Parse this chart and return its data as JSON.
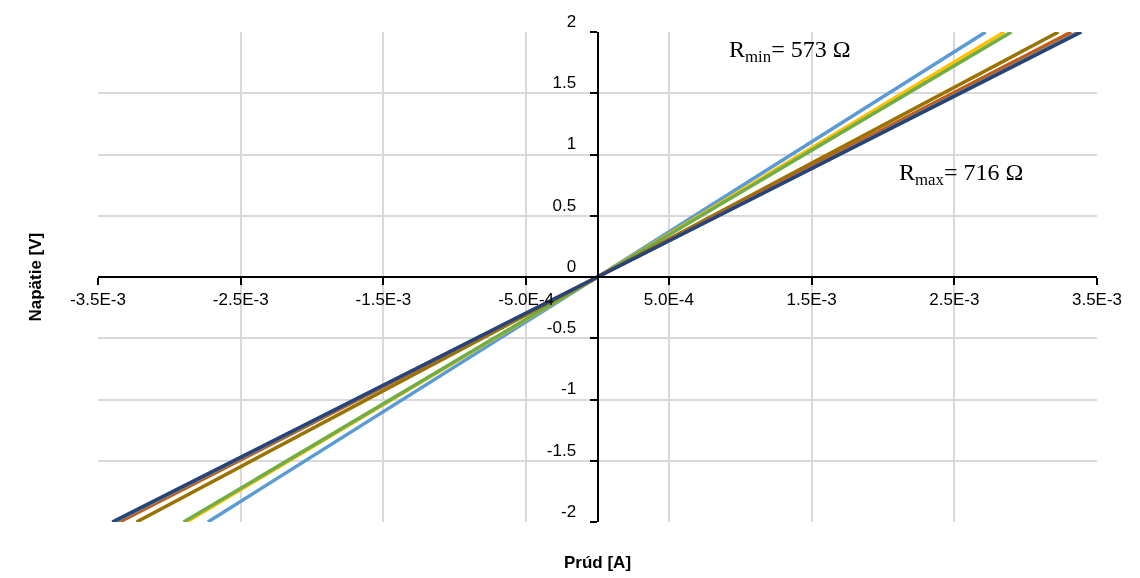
{
  "chart_data": {
    "type": "line",
    "xlabel": "Prúd [A]",
    "ylabel": "Napätie [V]",
    "series": [
      {
        "color": "#5b9bd5",
        "x": [
          -0.00273,
          0,
          0.00272
        ],
        "values": [
          -2,
          0,
          2
        ]
      },
      {
        "color": "#ffc000",
        "x": [
          -0.00288,
          0,
          0.00285
        ],
        "values": [
          -2,
          0,
          2
        ]
      },
      {
        "color": "#70ad47",
        "x": [
          -0.0029,
          0,
          0.0029
        ],
        "values": [
          -2,
          0,
          2
        ]
      },
      {
        "color": "#997300",
        "x": [
          -0.00323,
          0,
          0.00323
        ],
        "values": [
          -2,
          0,
          2
        ]
      },
      {
        "color": "#c55a11",
        "x": [
          -0.00335,
          0,
          0.00332
        ],
        "values": [
          -2,
          0,
          2
        ]
      },
      {
        "color": "#7f7f7f",
        "x": [
          -0.00338,
          0,
          0.00337
        ],
        "values": [
          -2,
          0,
          2
        ]
      },
      {
        "color": "#264478",
        "x": [
          -0.0034,
          0,
          0.00339
        ],
        "values": [
          -2,
          0,
          2
        ]
      }
    ],
    "xlim": [
      -0.0035,
      0.0035
    ],
    "xticks": [
      {
        "value": -0.0035,
        "label": "-3.5E-3"
      },
      {
        "value": -0.0025,
        "label": "-2.5E-3"
      },
      {
        "value": -0.0015,
        "label": "-1.5E-3"
      },
      {
        "value": -0.0005,
        "label": "-5.0E-4"
      },
      {
        "value": 0.0005,
        "label": "5.0E-4"
      },
      {
        "value": 0.0015,
        "label": "1.5E-3"
      },
      {
        "value": 0.0025,
        "label": "2.5E-3"
      },
      {
        "value": 0.0035,
        "label": "3.5E-3"
      }
    ],
    "ylim": [
      -2,
      2
    ],
    "yticks": [
      -2,
      -1.5,
      -1,
      -0.5,
      0,
      0.5,
      1,
      1.5,
      2
    ],
    "annotations": [
      "R$_{min}$= 573 Ω",
      "R$_{max}$= 716 Ω"
    ],
    "grid": true,
    "marker": "none",
    "line_style": "solid"
  }
}
